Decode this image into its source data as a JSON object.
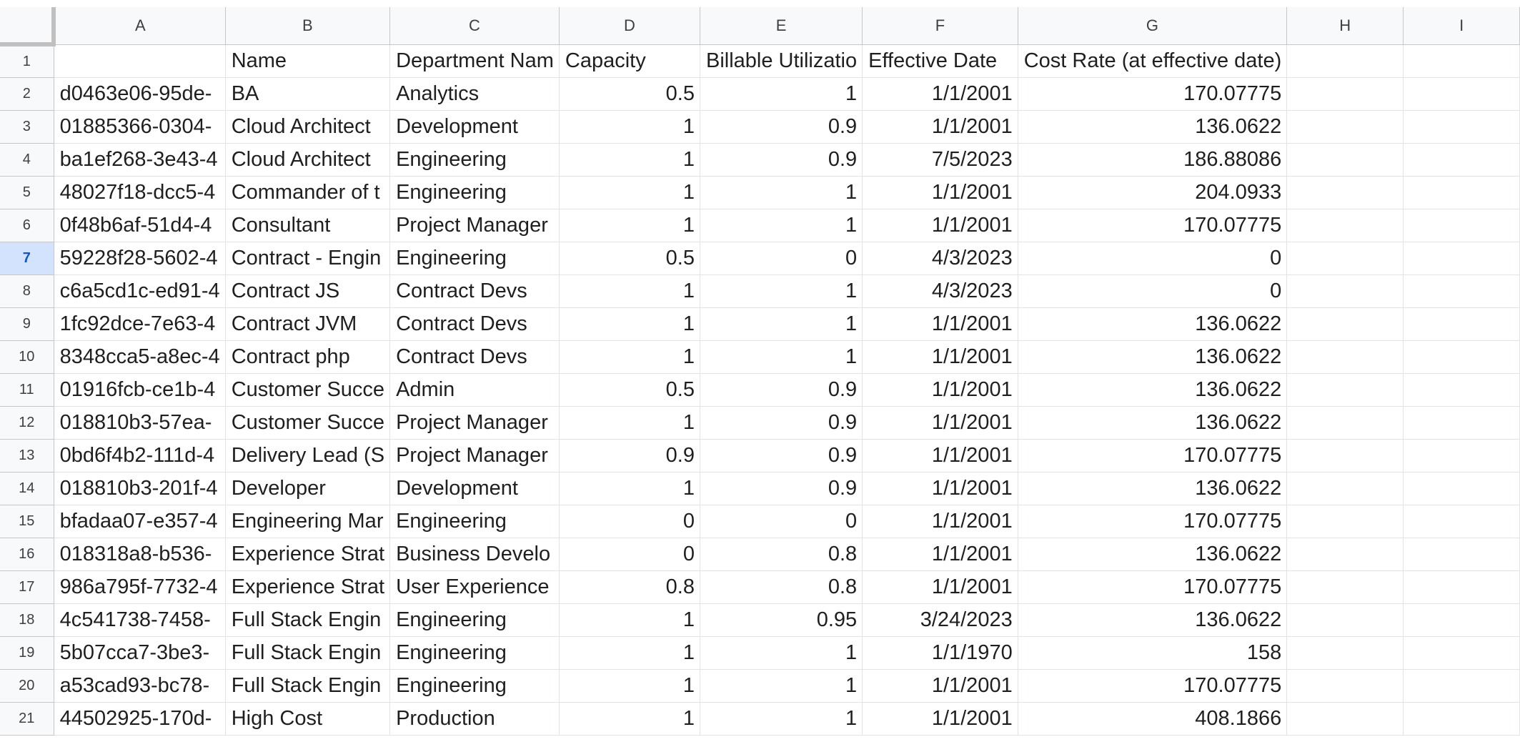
{
  "columns": [
    "A",
    "B",
    "C",
    "D",
    "E",
    "F",
    "G",
    "H",
    "I"
  ],
  "selected_row": "7",
  "rows": [
    {
      "n": "1",
      "cells": [
        "",
        "Name",
        "Department Nam",
        "Capacity",
        "Billable Utilizatio",
        "Effective Date",
        "Cost Rate (at effective date)",
        "",
        ""
      ]
    },
    {
      "n": "2",
      "cells": [
        "d0463e06-95de-",
        "BA",
        "Analytics",
        "0.5",
        "1",
        "1/1/2001",
        "170.07775",
        "",
        ""
      ]
    },
    {
      "n": "3",
      "cells": [
        "01885366-0304-",
        "Cloud Architect",
        "Development",
        "1",
        "0.9",
        "1/1/2001",
        "136.0622",
        "",
        ""
      ]
    },
    {
      "n": "4",
      "cells": [
        "ba1ef268-3e43-4",
        "Cloud Architect",
        "Engineering",
        "1",
        "0.9",
        "7/5/2023",
        "186.88086",
        "",
        ""
      ]
    },
    {
      "n": "5",
      "cells": [
        "48027f18-dcc5-4",
        "Commander of t",
        "Engineering",
        "1",
        "1",
        "1/1/2001",
        "204.0933",
        "",
        ""
      ]
    },
    {
      "n": "6",
      "cells": [
        "0f48b6af-51d4-4",
        "Consultant",
        "Project Manager",
        "1",
        "1",
        "1/1/2001",
        "170.07775",
        "",
        ""
      ]
    },
    {
      "n": "7",
      "cells": [
        "59228f28-5602-4",
        "Contract - Engin",
        "Engineering",
        "0.5",
        "0",
        "4/3/2023",
        "0",
        "",
        ""
      ]
    },
    {
      "n": "8",
      "cells": [
        "c6a5cd1c-ed91-4",
        "Contract JS",
        "Contract Devs",
        "1",
        "1",
        "4/3/2023",
        "0",
        "",
        ""
      ]
    },
    {
      "n": "9",
      "cells": [
        "1fc92dce-7e63-4",
        "Contract JVM",
        "Contract Devs",
        "1",
        "1",
        "1/1/2001",
        "136.0622",
        "",
        ""
      ]
    },
    {
      "n": "10",
      "cells": [
        "8348cca5-a8ec-4",
        "Contract php",
        "Contract Devs",
        "1",
        "1",
        "1/1/2001",
        "136.0622",
        "",
        ""
      ]
    },
    {
      "n": "11",
      "cells": [
        "01916fcb-ce1b-4",
        "Customer Succe",
        "Admin",
        "0.5",
        "0.9",
        "1/1/2001",
        "136.0622",
        "",
        ""
      ]
    },
    {
      "n": "12",
      "cells": [
        "018810b3-57ea-",
        "Customer Succe",
        "Project Manager",
        "1",
        "0.9",
        "1/1/2001",
        "136.0622",
        "",
        ""
      ]
    },
    {
      "n": "13",
      "cells": [
        "0bd6f4b2-111d-4",
        "Delivery Lead (S",
        "Project Manager",
        "0.9",
        "0.9",
        "1/1/2001",
        "170.07775",
        "",
        ""
      ]
    },
    {
      "n": "14",
      "cells": [
        "018810b3-201f-4",
        "Developer",
        "Development",
        "1",
        "0.9",
        "1/1/2001",
        "136.0622",
        "",
        ""
      ]
    },
    {
      "n": "15",
      "cells": [
        "bfadaa07-e357-4",
        "Engineering Mar",
        "Engineering",
        "0",
        "0",
        "1/1/2001",
        "170.07775",
        "",
        ""
      ]
    },
    {
      "n": "16",
      "cells": [
        "018318a8-b536-",
        "Experience Strat",
        "Business Develo",
        "0",
        "0.8",
        "1/1/2001",
        "136.0622",
        "",
        ""
      ]
    },
    {
      "n": "17",
      "cells": [
        "986a795f-7732-4",
        "Experience Strat",
        "User Experience",
        "0.8",
        "0.8",
        "1/1/2001",
        "170.07775",
        "",
        ""
      ]
    },
    {
      "n": "18",
      "cells": [
        "4c541738-7458-",
        "Full Stack Engin",
        "Engineering",
        "1",
        "0.95",
        "3/24/2023",
        "136.0622",
        "",
        ""
      ]
    },
    {
      "n": "19",
      "cells": [
        "5b07cca7-3be3-",
        "Full Stack Engin",
        "Engineering",
        "1",
        "1",
        "1/1/1970",
        "158",
        "",
        ""
      ]
    },
    {
      "n": "20",
      "cells": [
        "a53cad93-bc78-",
        "Full Stack Engin",
        "Engineering",
        "1",
        "1",
        "1/1/2001",
        "170.07775",
        "",
        ""
      ]
    },
    {
      "n": "21",
      "cells": [
        "44502925-170d-",
        "High Cost",
        "Production",
        "1",
        "1",
        "1/1/2001",
        "408.1866",
        "",
        ""
      ]
    }
  ]
}
